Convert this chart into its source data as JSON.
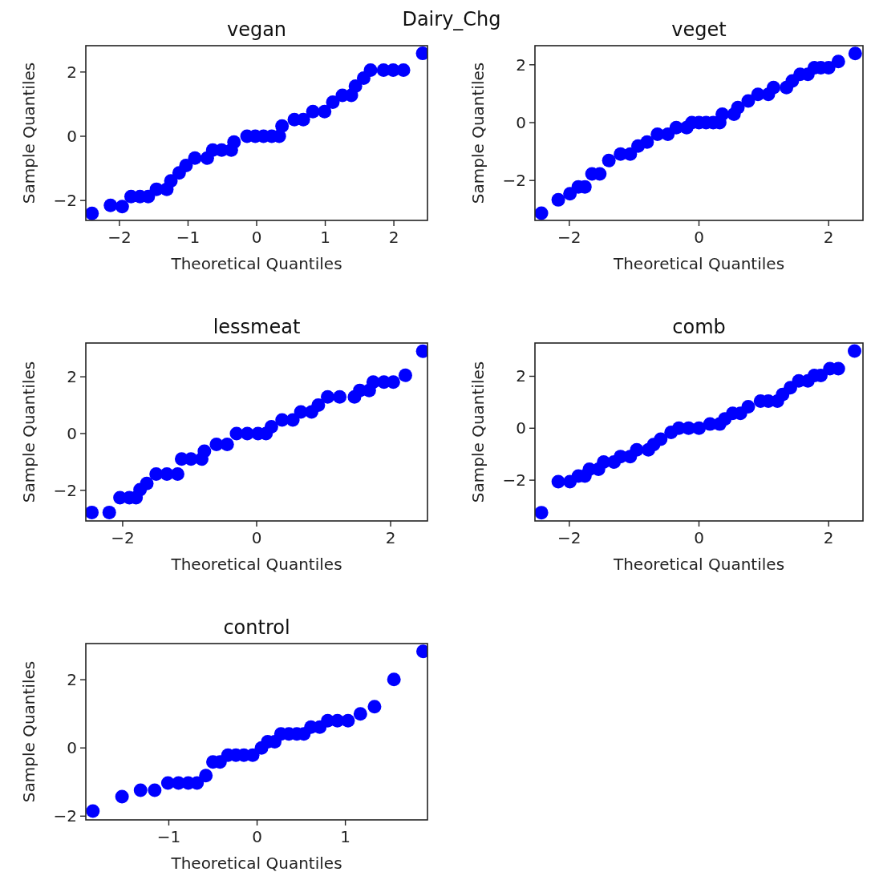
{
  "chart_data": [
    {
      "type": "scatter",
      "title": "vegan",
      "annotations": [
        "Dairy_Chg"
      ],
      "xlabel": "Theoretical Quantiles",
      "ylabel": "Sample Quantiles",
      "xlim": [
        -2.49,
        2.49
      ],
      "ylim": [
        -2.62,
        2.82
      ],
      "xticks": [
        -2,
        -1,
        0,
        1,
        2
      ],
      "yticks": [
        -2,
        0,
        2
      ],
      "marker": "circle",
      "color": "#0000ff",
      "x": [
        -2.4,
        -2.13,
        -1.96,
        -1.83,
        -1.7,
        -1.58,
        -1.46,
        -1.31,
        -1.25,
        -1.13,
        -1.03,
        -0.9,
        -0.72,
        -0.64,
        -0.51,
        -0.37,
        -0.33,
        -0.14,
        -0.02,
        0.1,
        0.22,
        0.33,
        0.37,
        0.55,
        0.68,
        0.82,
        0.99,
        1.11,
        1.25,
        1.38,
        1.44,
        1.56,
        1.66,
        1.85,
        1.99,
        2.14,
        2.42
      ],
      "values": [
        -2.4,
        -2.15,
        -2.19,
        -1.88,
        -1.88,
        -1.88,
        -1.65,
        -1.65,
        -1.39,
        -1.14,
        -0.91,
        -0.68,
        -0.68,
        -0.43,
        -0.43,
        -0.43,
        -0.18,
        0,
        0,
        0,
        0,
        0,
        0.32,
        0.52,
        0.52,
        0.77,
        0.77,
        1.06,
        1.27,
        1.27,
        1.56,
        1.81,
        2.06,
        2.06,
        2.06,
        2.06,
        2.58
      ]
    },
    {
      "type": "scatter",
      "title": "veget",
      "xlabel": "Theoretical Quantiles",
      "ylabel": "Sample Quantiles",
      "xlim": [
        -2.53,
        2.53
      ],
      "ylim": [
        -3.38,
        2.66
      ],
      "xticks": [
        -2,
        0,
        2
      ],
      "yticks": [
        -2,
        0,
        2
      ],
      "marker": "circle",
      "color": "#0000ff",
      "x": [
        -2.43,
        -2.17,
        -1.99,
        -1.86,
        -1.76,
        -1.65,
        -1.53,
        -1.39,
        -1.21,
        -1.06,
        -0.94,
        -0.8,
        -0.64,
        -0.48,
        -0.35,
        -0.19,
        -0.11,
        0,
        0.11,
        0.22,
        0.32,
        0.36,
        0.54,
        0.6,
        0.76,
        0.91,
        1.07,
        1.15,
        1.35,
        1.44,
        1.56,
        1.68,
        1.78,
        1.88,
        2.0,
        2.15,
        2.41
      ],
      "values": [
        -3.13,
        -2.67,
        -2.46,
        -2.22,
        -2.22,
        -1.77,
        -1.77,
        -1.31,
        -1.09,
        -1.09,
        -0.81,
        -0.67,
        -0.4,
        -0.4,
        -0.17,
        -0.17,
        0,
        0,
        0,
        0,
        0,
        0.29,
        0.29,
        0.52,
        0.75,
        0.98,
        0.98,
        1.21,
        1.21,
        1.44,
        1.67,
        1.67,
        1.9,
        1.9,
        1.9,
        2.11,
        2.39
      ]
    },
    {
      "type": "scatter",
      "title": "lessmeat",
      "xlabel": "Theoretical Quantiles",
      "ylabel": "Sample Quantiles",
      "xlim": [
        -2.55,
        2.55
      ],
      "ylim": [
        -3.08,
        3.19
      ],
      "xticks": [
        -2,
        0,
        2
      ],
      "yticks": [
        -2,
        0,
        2
      ],
      "marker": "circle",
      "color": "#0000ff",
      "x": [
        -2.46,
        -2.2,
        -2.04,
        -1.9,
        -1.8,
        -1.74,
        -1.64,
        -1.5,
        -1.34,
        -1.18,
        -1.12,
        -0.98,
        -0.82,
        -0.78,
        -0.6,
        -0.44,
        -0.3,
        -0.14,
        0.02,
        0.14,
        0.22,
        0.38,
        0.54,
        0.66,
        0.82,
        0.92,
        1.06,
        1.24,
        1.46,
        1.54,
        1.68,
        1.74,
        1.9,
        2.04,
        2.22,
        2.48
      ],
      "values": [
        -2.78,
        -2.78,
        -2.26,
        -2.26,
        -2.26,
        -1.98,
        -1.76,
        -1.43,
        -1.43,
        -1.43,
        -0.9,
        -0.9,
        -0.9,
        -0.62,
        -0.38,
        -0.38,
        0,
        0,
        0,
        0,
        0.24,
        0.48,
        0.48,
        0.76,
        0.76,
        1.0,
        1.29,
        1.29,
        1.29,
        1.52,
        1.52,
        1.81,
        1.81,
        1.81,
        2.05,
        2.9
      ]
    },
    {
      "type": "scatter",
      "title": "comb",
      "xlabel": "Theoretical Quantiles",
      "ylabel": "Sample Quantiles",
      "xlim": [
        -2.53,
        2.53
      ],
      "ylim": [
        -3.57,
        3.28
      ],
      "xticks": [
        -2,
        0,
        2
      ],
      "yticks": [
        -2,
        0,
        2
      ],
      "marker": "circle",
      "color": "#0000ff",
      "x": [
        -2.43,
        -2.17,
        -1.99,
        -1.86,
        -1.76,
        -1.69,
        -1.55,
        -1.47,
        -1.31,
        -1.21,
        -1.06,
        -0.96,
        -0.78,
        -0.7,
        -0.59,
        -0.43,
        -0.31,
        -0.16,
        0,
        0.17,
        0.32,
        0.4,
        0.52,
        0.64,
        0.76,
        0.95,
        1.07,
        1.21,
        1.29,
        1.41,
        1.54,
        1.68,
        1.78,
        1.88,
        2.02,
        2.15,
        2.4
      ],
      "values": [
        -3.25,
        -2.06,
        -2.06,
        -1.84,
        -1.84,
        -1.58,
        -1.58,
        -1.3,
        -1.3,
        -1.09,
        -1.09,
        -0.83,
        -0.83,
        -0.63,
        -0.42,
        -0.16,
        0,
        0,
        0,
        0.16,
        0.16,
        0.36,
        0.57,
        0.57,
        0.83,
        1.04,
        1.04,
        1.04,
        1.3,
        1.56,
        1.82,
        1.82,
        2.03,
        2.03,
        2.29,
        2.29,
        2.97
      ]
    },
    {
      "type": "scatter",
      "title": "control",
      "xlabel": "Theoretical Quantiles",
      "ylabel": "Sample Quantiles",
      "xlim": [
        -1.94,
        1.93
      ],
      "ylim": [
        -2.11,
        3.06
      ],
      "xticks": [
        -1,
        0,
        1
      ],
      "yticks": [
        -2,
        0,
        2
      ],
      "marker": "circle",
      "color": "#0000ff",
      "x": [
        -1.86,
        -1.53,
        -1.32,
        -1.16,
        -1.01,
        -0.89,
        -0.78,
        -0.68,
        -0.58,
        -0.5,
        -0.42,
        -0.33,
        -0.24,
        -0.15,
        -0.05,
        0.05,
        0.12,
        0.2,
        0.27,
        0.36,
        0.45,
        0.53,
        0.61,
        0.71,
        0.8,
        0.91,
        1.03,
        1.17,
        1.33,
        1.55,
        1.88
      ],
      "values": [
        -1.85,
        -1.43,
        -1.24,
        -1.24,
        -1.03,
        -1.03,
        -1.03,
        -1.03,
        -0.81,
        -0.41,
        -0.41,
        -0.21,
        -0.21,
        -0.21,
        -0.21,
        0,
        0.18,
        0.18,
        0.41,
        0.41,
        0.41,
        0.41,
        0.61,
        0.61,
        0.8,
        0.8,
        0.8,
        1.0,
        1.21,
        2.01,
        2.83
      ]
    }
  ]
}
